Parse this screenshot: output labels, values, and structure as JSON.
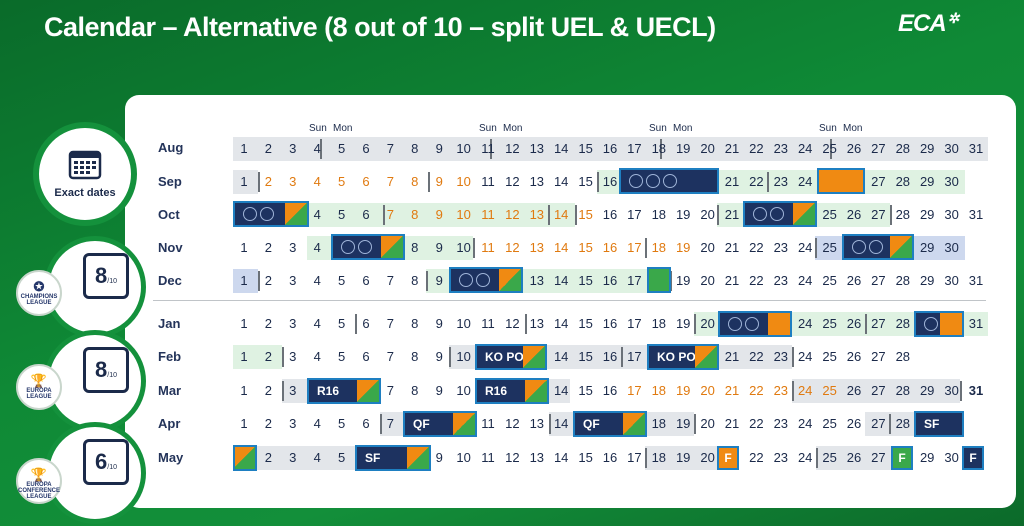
{
  "title": "Calendar – Alternative (8 out of 10 – split UEL & UECL)",
  "logo": "ECA",
  "badges": {
    "exact": "Exact dates",
    "ucl_count": "8",
    "uel_count": "8",
    "uecl_count": "6",
    "sub": "/10",
    "ucl_logo": "CHAMPIONS LEAGUE",
    "uel_logo": "EUROPA LEAGUE",
    "uecl_logo": "EUROPA CONFERENCE LEAGUE"
  },
  "header": {
    "sun": "Sun",
    "mon": "Mon"
  },
  "months": [
    "Aug",
    "Sep",
    "Oct",
    "Nov",
    "Dec",
    "Jan",
    "Feb",
    "Mar",
    "Apr",
    "May"
  ],
  "blocks": {
    "ko_po": "KO PO",
    "r16": "R16",
    "qf": "QF",
    "sf": "SF",
    "f": "F"
  },
  "colors": {
    "green": "#14913c",
    "navy": "#1d3260",
    "orange": "#f08a12",
    "blue_border": "#1e7fc1"
  }
}
